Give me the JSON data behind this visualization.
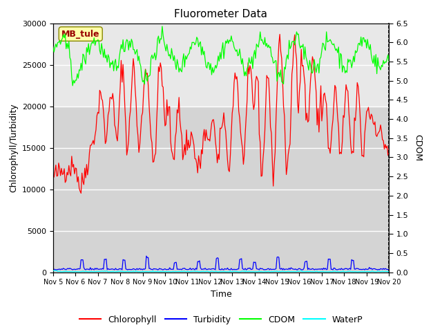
{
  "title": "Fluorometer Data",
  "xlabel": "Time",
  "ylabel_left": "Chlorophyll/Turbidity",
  "ylabel_right": "CDOM",
  "xlim": [
    0,
    360
  ],
  "ylim_left": [
    0,
    30000
  ],
  "ylim_right": [
    0.0,
    6.5
  ],
  "yticks_left": [
    0,
    5000,
    10000,
    15000,
    20000,
    25000,
    30000
  ],
  "yticks_right": [
    0.0,
    0.5,
    1.0,
    1.5,
    2.0,
    2.5,
    3.0,
    3.5,
    4.0,
    4.5,
    5.0,
    5.5,
    6.0,
    6.5
  ],
  "xtick_labels": [
    "Nov 5",
    "Nov 6",
    "Nov 7",
    "Nov 8",
    "Nov 9",
    "Nov 10",
    "Nov 11",
    "Nov 12",
    "Nov 13",
    "Nov 14",
    "Nov 15",
    "Nov 16",
    "Nov 17",
    "Nov 18",
    "Nov 19",
    "Nov 20"
  ],
  "xtick_positions": [
    0,
    24,
    48,
    72,
    96,
    120,
    144,
    168,
    192,
    216,
    240,
    264,
    288,
    312,
    336,
    360
  ],
  "legend_labels": [
    "Chlorophyll",
    "Turbidity",
    "CDOM",
    "WaterP"
  ],
  "legend_colors": [
    "red",
    "blue",
    "lime",
    "cyan"
  ],
  "station_label": "MB_tule",
  "station_label_color": "#990000",
  "bg_color": "#ffffff",
  "inner_bg_color": "#d4d4d4",
  "inner_bg_upper": "#e8e8e8",
  "grid_color": "#ffffff",
  "n_points": 361
}
